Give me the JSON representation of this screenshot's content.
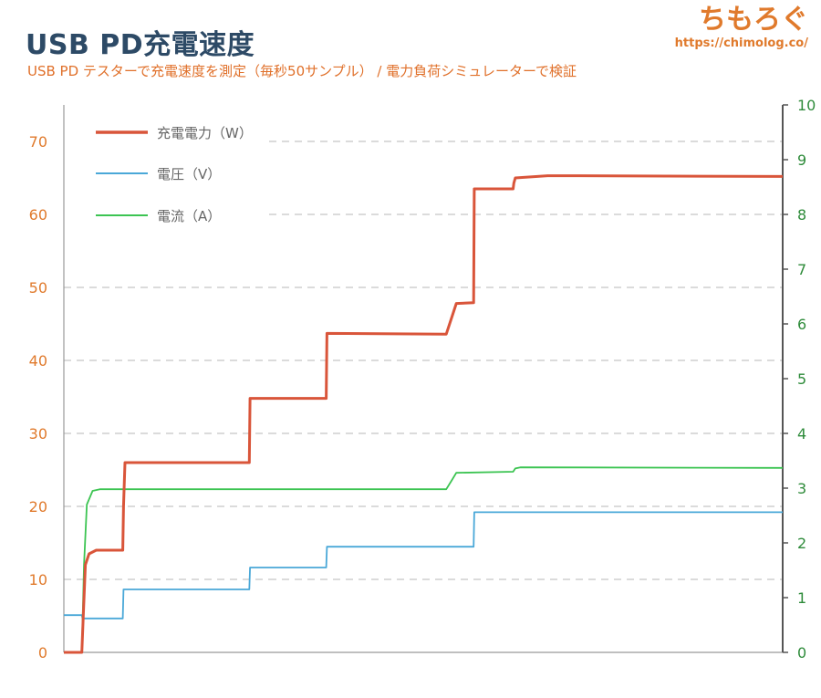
{
  "header": {
    "title": "USB PD充電速度",
    "subtitle": "USB PD テスターで充電速度を測定（毎秒50サンプル） / 電力負荷シミュレーターで検証",
    "brand_name": "ちもろぐ",
    "brand_url": "https://chimolog.co/"
  },
  "colors": {
    "power": "#d9553a",
    "voltage": "#4aa8d8",
    "current": "#3cc452",
    "left_axis": "#e07a2c",
    "right_axis": "#2e8b3a",
    "grid": "#cfcfcf",
    "axis_line": "#555555"
  },
  "chart_data": {
    "type": "line",
    "title": "USB PD充電速度",
    "xlabel": "",
    "ylabel": "",
    "xlim": [
      0,
      100
    ],
    "ylim": [
      0,
      75
    ],
    "y2lim": [
      0,
      10
    ],
    "yticks": [
      0,
      10,
      20,
      30,
      40,
      50,
      60,
      70
    ],
    "y2ticks": [
      0,
      1,
      2,
      3,
      4,
      5,
      6,
      7,
      8,
      9,
      10
    ],
    "grid": true,
    "legend_position": "top-left",
    "series": [
      {
        "name": "充電電力（W）",
        "axis": "left",
        "color_key": "power",
        "x": [
          0,
          2.5,
          2.7,
          3.0,
          3.5,
          4.5,
          8.2,
          8.3,
          8.5,
          25.8,
          25.9,
          36.5,
          36.6,
          53.2,
          54.0,
          54.6,
          57.0,
          57.1,
          62.5,
          62.6,
          62.8,
          67.3,
          67.6,
          68.4,
          100
        ],
        "y": [
          0,
          0,
          5,
          12,
          13.5,
          14,
          14,
          20,
          26,
          26,
          34.8,
          34.8,
          43.7,
          43.6,
          46,
          47.8,
          47.9,
          63.5,
          63.5,
          64.3,
          65.0,
          65.3,
          65.3,
          65.3,
          65.2
        ]
      },
      {
        "name": "電圧（V）",
        "axis": "right",
        "color_key": "voltage",
        "x": [
          0,
          2.5,
          2.6,
          8.2,
          8.3,
          25.8,
          25.9,
          36.5,
          36.6,
          57.0,
          57.1,
          100
        ],
        "y": [
          0.68,
          0.68,
          0.62,
          0.62,
          1.15,
          1.15,
          1.55,
          1.55,
          1.93,
          1.93,
          2.56,
          2.56
        ]
      },
      {
        "name": "電流（A）",
        "axis": "right",
        "color_key": "current",
        "x": [
          0,
          2.5,
          2.8,
          3.2,
          4.0,
          5.0,
          53.2,
          54.0,
          54.6,
          62.5,
          62.8,
          63.5,
          100
        ],
        "y": [
          0,
          0,
          1.6,
          2.7,
          2.95,
          2.98,
          2.98,
          3.15,
          3.28,
          3.3,
          3.36,
          3.38,
          3.37
        ]
      }
    ]
  }
}
